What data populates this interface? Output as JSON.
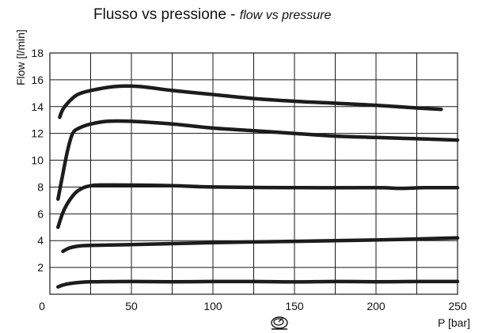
{
  "chart_data": {
    "type": "line",
    "title": "Flusso vs pressione - ",
    "title_italic": "flow vs pressure",
    "xlabel": "P [bar]",
    "ylabel": "Flow [l/min]",
    "x_icon": "pressure-gauge-icon",
    "xlim": [
      0,
      250
    ],
    "ylim": [
      0,
      18
    ],
    "xticks": [
      0,
      50,
      100,
      150,
      200,
      250
    ],
    "yticks": [
      2,
      4,
      6,
      8,
      10,
      12,
      14,
      16,
      18
    ],
    "x_origin_label": "0",
    "grid": true,
    "line_color": "#1c1c1c",
    "series": [
      {
        "x": [
          6,
          8,
          12,
          17,
          25,
          40,
          55,
          75,
          100,
          125,
          150,
          175,
          200,
          225,
          240
        ],
        "values": [
          13.2,
          13.8,
          14.4,
          14.9,
          15.2,
          15.5,
          15.5,
          15.2,
          14.9,
          14.6,
          14.4,
          14.25,
          14.1,
          13.9,
          13.8
        ]
      },
      {
        "x": [
          5,
          8,
          11,
          14,
          18,
          25,
          35,
          50,
          75,
          100,
          125,
          150,
          175,
          200,
          225,
          250
        ],
        "values": [
          7.1,
          9.0,
          10.8,
          12.0,
          12.4,
          12.7,
          12.9,
          12.9,
          12.7,
          12.4,
          12.2,
          12.0,
          11.8,
          11.7,
          11.6,
          11.5
        ]
      },
      {
        "x": [
          5,
          8,
          12,
          17,
          25,
          40,
          75,
          100,
          150,
          200,
          215,
          230,
          250
        ],
        "values": [
          5.0,
          6.1,
          7.0,
          7.7,
          8.1,
          8.15,
          8.1,
          8.0,
          7.95,
          7.95,
          7.9,
          7.95,
          7.95
        ]
      },
      {
        "x": [
          8,
          12,
          18,
          25,
          50,
          100,
          150,
          200,
          250
        ],
        "values": [
          3.2,
          3.45,
          3.6,
          3.65,
          3.7,
          3.85,
          3.95,
          4.05,
          4.2
        ]
      },
      {
        "x": [
          5,
          10,
          20,
          30,
          50,
          75,
          100,
          125,
          150,
          175,
          200,
          225,
          250
        ],
        "values": [
          0.55,
          0.75,
          0.9,
          0.93,
          0.95,
          0.93,
          0.95,
          0.95,
          0.92,
          0.95,
          0.93,
          0.95,
          0.95
        ]
      }
    ]
  }
}
